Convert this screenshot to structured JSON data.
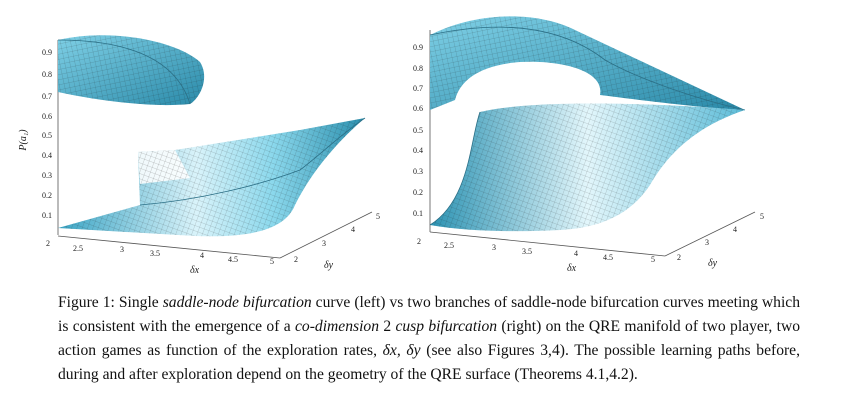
{
  "figure": {
    "left_panel": {
      "ylabel": "P(a₁)",
      "z_ticks": [
        "0.9",
        "0.8",
        "0.7",
        "0.6",
        "0.5",
        "0.4",
        "0.3",
        "0.2",
        "0.1"
      ],
      "x_ticks": [
        "2",
        "2.5",
        "3",
        "3.5",
        "4",
        "4.5",
        "5"
      ],
      "y_ticks": [
        "2",
        "3",
        "4",
        "5"
      ],
      "xlabel": "δx",
      "ylabel_depth": "δy"
    },
    "right_panel": {
      "z_ticks": [
        "0.9",
        "0.8",
        "0.7",
        "0.6",
        "0.5",
        "0.4",
        "0.3",
        "0.2",
        "0.1"
      ],
      "x_ticks": [
        "2",
        "2.5",
        "3",
        "3.5",
        "4",
        "4.5",
        "5"
      ],
      "y_ticks": [
        "2",
        "3",
        "4",
        "5"
      ],
      "xlabel": "δx",
      "ylabel_depth": "δy"
    },
    "colors": {
      "surface_light": "#e6f7fc",
      "surface_mid": "#8fdcee",
      "surface_dark": "#2b8fb0",
      "mesh": "#1a1a1a"
    }
  },
  "caption": {
    "p1": "Figure 1: Single ",
    "i1": "saddle-node bifurcation",
    "p2": " curve (left) vs two branches of saddle-node bifurcation curves meeting which is consistent with the emergence of a ",
    "i2": "co-dimension",
    "p3": " 2 ",
    "i3": "cusp bifurcation",
    "p4": " (right) on the QRE manifold of two player, two action games as function of the exploration rates, ",
    "i4": "δx, δy",
    "p5": " (see also Figures 3,4). The possible learning paths before, during and after exploration depend on the geometry of the QRE surface (Theorems 4.1,4.2)."
  }
}
